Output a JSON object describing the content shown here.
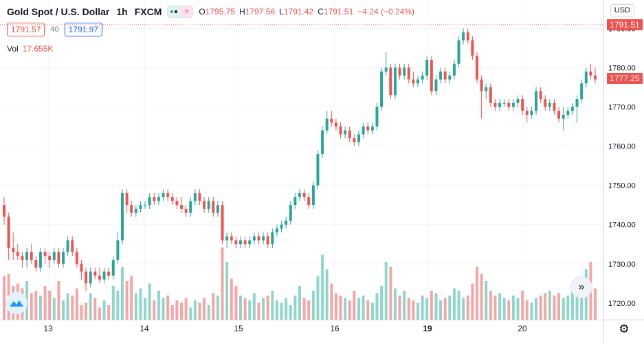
{
  "header": {
    "symbol": "Gold Spot / U.S. Dollar",
    "interval": "1h",
    "source": "FXCM",
    "open_label": "O",
    "open": "1795.75",
    "high_label": "H",
    "high": "1797.56",
    "low_label": "L",
    "low": "1791.42",
    "close_label": "C",
    "close": "1791.51",
    "change": "−4.24 (−0.24%)"
  },
  "trade": {
    "sell": "1791.57",
    "spread": "40",
    "buy": "1791.97"
  },
  "volume": {
    "label": "Vol",
    "value": "17.655K"
  },
  "currency": "USD",
  "price_axis": {
    "ticks": [
      "1790.00",
      "1780.00",
      "1770.00",
      "1760.00",
      "1750.00",
      "1740.00",
      "1730.00",
      "1720.00"
    ],
    "last_price": "1791.51",
    "marker_price": "1777.25"
  },
  "time_axis": {
    "ticks": [
      "13",
      "14",
      "15",
      "16",
      "19",
      "20"
    ]
  },
  "colors": {
    "up": "#26a69a",
    "down": "#ef5350",
    "up_vol": "#8fd6c9",
    "down_vol": "#f5a5a5"
  },
  "icons": {
    "scroll": "chevron-double-right-icon",
    "logo": "tradingview-logo-icon",
    "settings": "gear-icon"
  },
  "chart_data": {
    "type": "candlestick",
    "ylim": [
      1717,
      1792
    ],
    "last_price": 1791.51,
    "marker_price": 1777.25,
    "x_ticks": [
      "13",
      "14",
      "15",
      "16",
      "19",
      "20"
    ],
    "candles": [
      [
        1745,
        1747,
        1740,
        1742
      ],
      [
        1742,
        1743,
        1731,
        1734
      ],
      [
        1734,
        1738,
        1731,
        1733
      ],
      [
        1733,
        1735,
        1731,
        1732
      ],
      [
        1732,
        1733,
        1729,
        1731
      ],
      [
        1731,
        1734,
        1729,
        1733
      ],
      [
        1733,
        1735,
        1730,
        1731
      ],
      [
        1731,
        1732,
        1728,
        1729
      ],
      [
        1729,
        1734,
        1728,
        1733
      ],
      [
        1733,
        1734,
        1730,
        1732
      ],
      [
        1732,
        1733,
        1729,
        1731
      ],
      [
        1731,
        1734,
        1730,
        1733
      ],
      [
        1733,
        1734,
        1729,
        1730
      ],
      [
        1730,
        1734,
        1729,
        1733
      ],
      [
        1733,
        1737,
        1732,
        1736
      ],
      [
        1736,
        1737,
        1732,
        1733
      ],
      [
        1733,
        1734,
        1729,
        1730
      ],
      [
        1730,
        1731,
        1726,
        1728
      ],
      [
        1728,
        1729,
        1723,
        1725
      ],
      [
        1725,
        1729,
        1724,
        1728
      ],
      [
        1728,
        1729,
        1726,
        1727
      ],
      [
        1727,
        1729,
        1725,
        1726
      ],
      [
        1726,
        1729,
        1725,
        1728
      ],
      [
        1728,
        1729,
        1726,
        1727
      ],
      [
        1727,
        1732,
        1726,
        1731
      ],
      [
        1731,
        1738,
        1730,
        1736
      ],
      [
        1736,
        1749,
        1735,
        1748
      ],
      [
        1748,
        1749,
        1743,
        1745
      ],
      [
        1745,
        1746,
        1742,
        1743
      ],
      [
        1743,
        1745,
        1742,
        1744
      ],
      [
        1744,
        1746,
        1743,
        1745
      ],
      [
        1745,
        1746,
        1744,
        1745
      ],
      [
        1745,
        1748,
        1744,
        1747
      ],
      [
        1747,
        1748,
        1745,
        1746
      ],
      [
        1746,
        1748,
        1745,
        1747
      ],
      [
        1747,
        1749,
        1746,
        1748
      ],
      [
        1748,
        1749,
        1746,
        1747
      ],
      [
        1747,
        1748,
        1745,
        1746
      ],
      [
        1746,
        1747,
        1744,
        1745
      ],
      [
        1745,
        1747,
        1743,
        1744
      ],
      [
        1744,
        1745,
        1742,
        1743
      ],
      [
        1743,
        1747,
        1742,
        1746
      ],
      [
        1746,
        1749,
        1745,
        1748
      ],
      [
        1748,
        1749,
        1745,
        1746
      ],
      [
        1746,
        1747,
        1743,
        1744
      ],
      [
        1744,
        1747,
        1743,
        1746
      ],
      [
        1746,
        1747,
        1742,
        1743
      ],
      [
        1743,
        1746,
        1742,
        1745
      ],
      [
        1745,
        1746,
        1735,
        1736
      ],
      [
        1736,
        1738,
        1734,
        1737
      ],
      [
        1737,
        1738,
        1735,
        1736
      ],
      [
        1736,
        1737,
        1734,
        1735
      ],
      [
        1735,
        1737,
        1734,
        1736
      ],
      [
        1736,
        1737,
        1734,
        1735
      ],
      [
        1735,
        1737,
        1734,
        1736
      ],
      [
        1736,
        1738,
        1735,
        1737
      ],
      [
        1737,
        1738,
        1735,
        1736
      ],
      [
        1736,
        1738,
        1735,
        1737
      ],
      [
        1737,
        1738,
        1734,
        1735
      ],
      [
        1735,
        1739,
        1734,
        1738
      ],
      [
        1738,
        1740,
        1737,
        1739
      ],
      [
        1739,
        1741,
        1738,
        1740
      ],
      [
        1740,
        1742,
        1739,
        1741
      ],
      [
        1741,
        1746,
        1740,
        1745
      ],
      [
        1745,
        1748,
        1744,
        1747
      ],
      [
        1747,
        1749,
        1746,
        1748
      ],
      [
        1748,
        1749,
        1746,
        1747
      ],
      [
        1747,
        1748,
        1744,
        1745
      ],
      [
        1745,
        1751,
        1744,
        1750
      ],
      [
        1750,
        1759,
        1749,
        1758
      ],
      [
        1758,
        1765,
        1757,
        1764
      ],
      [
        1764,
        1769,
        1763,
        1767
      ],
      [
        1767,
        1769,
        1765,
        1766
      ],
      [
        1766,
        1767,
        1764,
        1765
      ],
      [
        1765,
        1766,
        1762,
        1763
      ],
      [
        1763,
        1765,
        1762,
        1764
      ],
      [
        1764,
        1765,
        1761,
        1762
      ],
      [
        1762,
        1763,
        1760,
        1761
      ],
      [
        1761,
        1764,
        1760,
        1763
      ],
      [
        1763,
        1766,
        1762,
        1765
      ],
      [
        1765,
        1766,
        1763,
        1764
      ],
      [
        1764,
        1766,
        1763,
        1765
      ],
      [
        1765,
        1771,
        1764,
        1770
      ],
      [
        1770,
        1780,
        1769,
        1779
      ],
      [
        1779,
        1784,
        1778,
        1780
      ],
      [
        1780,
        1781,
        1772,
        1773
      ],
      [
        1773,
        1781,
        1772,
        1780
      ],
      [
        1780,
        1781,
        1777,
        1778
      ],
      [
        1778,
        1781,
        1777,
        1780
      ],
      [
        1780,
        1781,
        1776,
        1777
      ],
      [
        1777,
        1779,
        1775,
        1776
      ],
      [
        1776,
        1778,
        1775,
        1777
      ],
      [
        1777,
        1779,
        1776,
        1778
      ],
      [
        1778,
        1783,
        1777,
        1782
      ],
      [
        1782,
        1783,
        1773,
        1774
      ],
      [
        1774,
        1778,
        1773,
        1777
      ],
      [
        1777,
        1780,
        1776,
        1779
      ],
      [
        1779,
        1780,
        1776,
        1777
      ],
      [
        1777,
        1779,
        1776,
        1778
      ],
      [
        1778,
        1782,
        1777,
        1781
      ],
      [
        1781,
        1788,
        1780,
        1787
      ],
      [
        1787,
        1790,
        1786,
        1789
      ],
      [
        1789,
        1790,
        1786,
        1787
      ],
      [
        1787,
        1788,
        1782,
        1783
      ],
      [
        1783,
        1784,
        1776,
        1777
      ],
      [
        1777,
        1778,
        1767,
        1774
      ],
      [
        1774,
        1776,
        1772,
        1775
      ],
      [
        1775,
        1776,
        1770,
        1771
      ],
      [
        1771,
        1772,
        1769,
        1770
      ],
      [
        1770,
        1772,
        1769,
        1771
      ],
      [
        1771,
        1772,
        1770,
        1771
      ],
      [
        1771,
        1772,
        1769,
        1770
      ],
      [
        1770,
        1772,
        1769,
        1771
      ],
      [
        1771,
        1773,
        1770,
        1772
      ],
      [
        1772,
        1773,
        1768,
        1769
      ],
      [
        1769,
        1770,
        1766,
        1768
      ],
      [
        1768,
        1770,
        1767,
        1769
      ],
      [
        1769,
        1775,
        1768,
        1774
      ],
      [
        1774,
        1775,
        1771,
        1772
      ],
      [
        1772,
        1773,
        1769,
        1770
      ],
      [
        1770,
        1772,
        1769,
        1771
      ],
      [
        1771,
        1772,
        1768,
        1769
      ],
      [
        1769,
        1770,
        1766,
        1767
      ],
      [
        1767,
        1770,
        1764,
        1768
      ],
      [
        1768,
        1770,
        1767,
        1769
      ],
      [
        1769,
        1771,
        1768,
        1770
      ],
      [
        1770,
        1773,
        1766,
        1772
      ],
      [
        1772,
        1777,
        1771,
        1776
      ],
      [
        1776,
        1780,
        1775,
        1779
      ],
      [
        1779,
        1781,
        1777,
        1778
      ],
      [
        1778,
        1780,
        1776,
        1777
      ]
    ],
    "volumes": [
      18,
      19,
      14,
      15,
      13,
      16,
      11,
      12,
      10,
      14,
      12,
      9,
      16,
      8,
      11,
      10,
      13,
      6,
      7,
      11,
      9,
      5,
      8,
      6,
      14,
      12,
      22,
      16,
      18,
      11,
      13,
      9,
      15,
      8,
      12,
      9,
      10,
      6,
      8,
      7,
      9,
      5,
      8,
      7,
      9,
      6,
      11,
      10,
      30,
      24,
      17,
      14,
      10,
      9,
      8,
      11,
      7,
      9,
      10,
      12,
      8,
      7,
      9,
      6,
      10,
      14,
      9,
      8,
      12,
      18,
      27,
      21,
      15,
      11,
      10,
      9,
      8,
      12,
      9,
      10,
      8,
      7,
      11,
      14,
      24,
      22,
      13,
      10,
      12,
      9,
      8,
      7,
      10,
      9,
      12,
      11,
      8,
      9,
      10,
      13,
      12,
      9,
      10,
      15,
      22,
      19,
      16,
      12,
      10,
      11,
      9,
      8,
      10,
      9,
      12,
      8,
      7,
      9,
      10,
      11,
      12,
      10,
      11,
      9,
      10,
      12,
      11,
      13,
      21,
      24,
      13,
      11,
      9
    ]
  }
}
